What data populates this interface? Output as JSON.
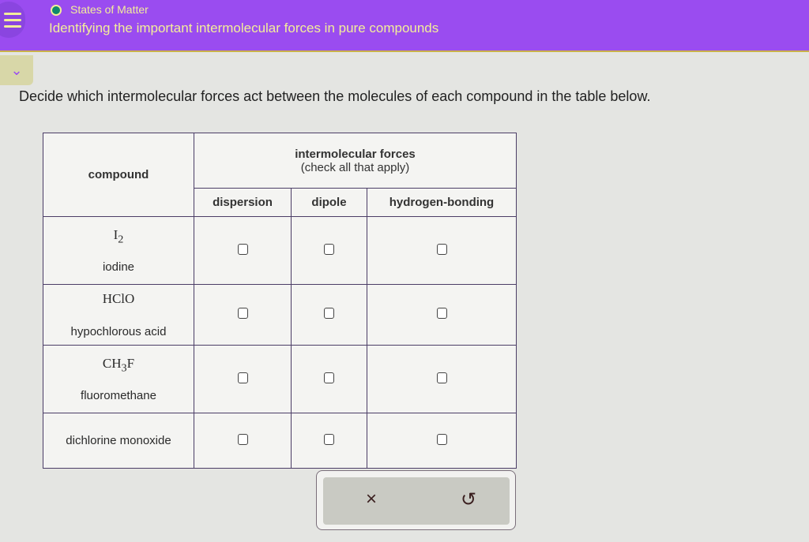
{
  "header": {
    "topic": "States of Matter",
    "title": "Identifying the important intermolecular forces in pure compounds"
  },
  "prompt": "Decide which intermolecular forces act between the molecules of each compound in the table below.",
  "table": {
    "compound_header": "compound",
    "forces_header": "intermolecular forces",
    "forces_sub": "(check all that apply)",
    "columns": [
      "dispersion",
      "dipole",
      "hydrogen-bonding"
    ],
    "rows": [
      {
        "formula": "I",
        "sub": "2",
        "after": "",
        "name": "iodine",
        "checked": [
          false,
          false,
          false
        ]
      },
      {
        "formula": "HClO",
        "sub": "",
        "after": "",
        "name": "hypochlorous acid",
        "checked": [
          false,
          false,
          false
        ]
      },
      {
        "formula": "CH",
        "sub": "3",
        "after": "F",
        "name": "fluoromethane",
        "checked": [
          false,
          false,
          false
        ]
      },
      {
        "formula": "",
        "sub": "",
        "after": "",
        "name": "dichlorine monoxide",
        "checked": [
          false,
          false,
          false
        ]
      }
    ]
  },
  "actions": {
    "clear": "×",
    "undo": "↺"
  },
  "colors": {
    "header_bg": "#9a4cf0",
    "header_text": "#f3ee9a"
  }
}
